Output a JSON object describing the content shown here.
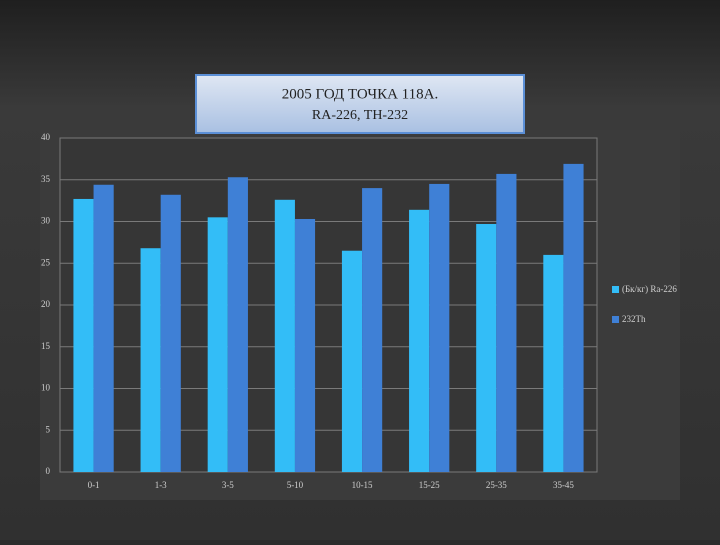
{
  "chart_data": {
    "type": "bar",
    "title": "2005 ГОД ТОЧКА 118А.",
    "subtitle": "RA-226, TH-232",
    "categories": [
      "0-1",
      "1-3",
      "3-5",
      "5-10",
      "10-15",
      "15-25",
      "25-35",
      "35-45"
    ],
    "series": [
      {
        "name": "(Бк/кг) Ra-226",
        "color": "#33bdf7",
        "values": [
          32.7,
          26.8,
          30.5,
          32.6,
          26.5,
          31.4,
          29.7,
          26.0
        ]
      },
      {
        "name": "232Th",
        "color": "#3f80d6",
        "values": [
          34.4,
          33.2,
          35.3,
          30.3,
          34.0,
          34.5,
          35.7,
          36.9
        ]
      }
    ],
    "ylim": [
      0,
      40
    ],
    "yticks": [
      0,
      5,
      10,
      15,
      20,
      25,
      30,
      35,
      40
    ],
    "grid": true,
    "legend": "right"
  }
}
